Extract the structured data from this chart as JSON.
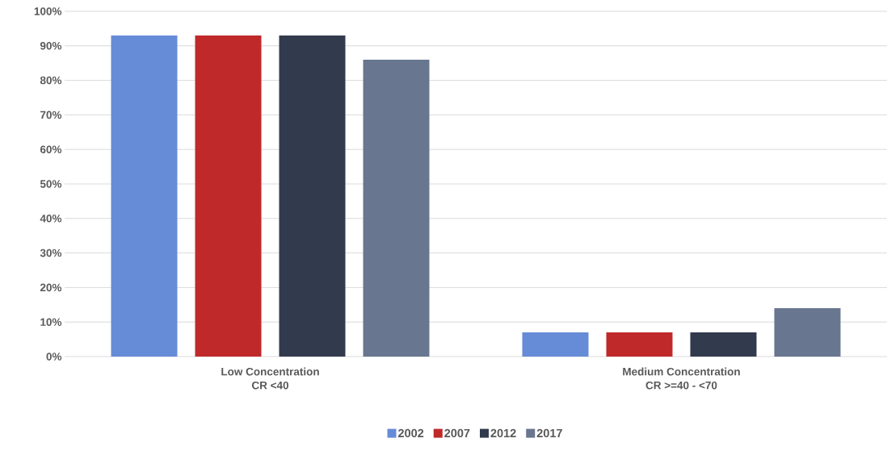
{
  "chart_data": {
    "type": "bar",
    "categories": [
      "Low Concentration\nCR <40",
      "Medium Concentration\nCR >=40 - <70"
    ],
    "series": [
      {
        "name": "2002",
        "color": "#668bd7",
        "values": [
          93,
          7
        ]
      },
      {
        "name": "2007",
        "color": "#c0292a",
        "values": [
          93,
          7
        ]
      },
      {
        "name": "2012",
        "color": "#323a4d",
        "values": [
          93,
          7
        ]
      },
      {
        "name": "2017",
        "color": "#68768f",
        "values": [
          86,
          14
        ]
      }
    ],
    "ylim": [
      0,
      100
    ],
    "yticks": [
      {
        "value": 0,
        "label": "0%"
      },
      {
        "value": 10,
        "label": "10%"
      },
      {
        "value": 20,
        "label": "20%"
      },
      {
        "value": 30,
        "label": "30%"
      },
      {
        "value": 40,
        "label": "40%"
      },
      {
        "value": 50,
        "label": "50%"
      },
      {
        "value": 60,
        "label": "60%"
      },
      {
        "value": 70,
        "label": "70%"
      },
      {
        "value": 80,
        "label": "80%"
      },
      {
        "value": 90,
        "label": "90%"
      },
      {
        "value": 100,
        "label": "100%"
      }
    ],
    "grid": "y",
    "legend": "bottom"
  }
}
